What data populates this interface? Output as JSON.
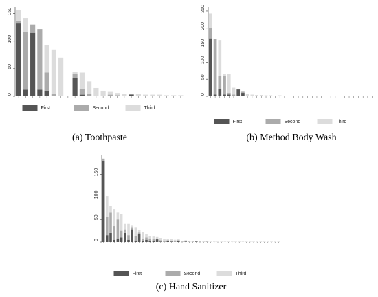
{
  "chart_data": [
    {
      "type": "stacked_bar",
      "title": "(a) Toothpaste",
      "categories": [
        null,
        null,
        null,
        null,
        null,
        null,
        null,
        null,
        null,
        null,
        null,
        null,
        null,
        null,
        null,
        null,
        null,
        null,
        null,
        null,
        null,
        null,
        null,
        null
      ],
      "series": [
        {
          "name": "First",
          "color": "#555555",
          "values": [
            132,
            12,
            115,
            12,
            10,
            0,
            0,
            0,
            33,
            3,
            0,
            0,
            0,
            0,
            0,
            0,
            3,
            0,
            0,
            0,
            1,
            0,
            1,
            0
          ]
        },
        {
          "name": "Second",
          "color": "#ababab",
          "values": [
            5,
            105,
            15,
            110,
            33,
            5,
            0,
            0,
            8,
            10,
            5,
            0,
            0,
            3,
            2,
            1,
            1,
            1,
            1,
            1,
            0,
            1,
            0,
            1
          ]
        },
        {
          "name": "Third",
          "color": "#dcdcdc",
          "values": [
            20,
            25,
            0,
            0,
            50,
            80,
            70,
            0,
            3,
            30,
            22,
            15,
            10,
            5,
            4,
            4,
            1,
            3,
            2,
            2,
            2,
            1,
            1,
            1
          ]
        }
      ],
      "ylim": [
        0,
        162
      ],
      "yticks": [
        0,
        50,
        100,
        150
      ]
    },
    {
      "type": "stacked_bar",
      "title": "(b) Method Body Wash",
      "categories": [
        null,
        null,
        null,
        null,
        null,
        null,
        null,
        null,
        null,
        null,
        null,
        null,
        null,
        null,
        null,
        null,
        null,
        null,
        null,
        null,
        null,
        null,
        null,
        null,
        null,
        null,
        null,
        null,
        null,
        null,
        null,
        null,
        null,
        null,
        null,
        null
      ],
      "series": [
        {
          "name": "First",
          "color": "#555555",
          "values": [
            170,
            5,
            22,
            5,
            5,
            0,
            20,
            10,
            0,
            0,
            0,
            0,
            0,
            0,
            0,
            2,
            0,
            0,
            0,
            0,
            0,
            0,
            0,
            0,
            0,
            0,
            0,
            0,
            0,
            0,
            0,
            0,
            0,
            0,
            0,
            0
          ]
        },
        {
          "name": "Second",
          "color": "#ababab",
          "values": [
            30,
            163,
            38,
            55,
            5,
            5,
            2,
            3,
            2,
            1,
            1,
            1,
            1,
            1,
            0,
            0,
            1,
            0,
            0,
            0,
            0,
            0,
            0,
            0,
            0,
            0,
            0,
            0,
            0,
            0,
            0,
            0,
            0,
            0,
            0,
            0
          ]
        },
        {
          "name": "Third",
          "color": "#dcdcdc",
          "values": [
            43,
            0,
            105,
            5,
            55,
            20,
            0,
            2,
            5,
            4,
            3,
            3,
            2,
            2,
            2,
            1,
            1,
            1,
            1,
            1,
            1,
            1,
            1,
            1,
            1,
            1,
            1,
            1,
            1,
            1,
            1,
            1,
            1,
            1,
            1,
            1
          ]
        }
      ],
      "ylim": [
        0,
        262
      ],
      "yticks": [
        0,
        50,
        100,
        150,
        200,
        250
      ]
    },
    {
      "type": "stacked_bar",
      "title": "(c) Hand Sanitizer",
      "categories": [
        null,
        null,
        null,
        null,
        null,
        null,
        null,
        null,
        null,
        null,
        null,
        null,
        null,
        null,
        null,
        null,
        null,
        null,
        null,
        null,
        null,
        null,
        null,
        null,
        null,
        null,
        null,
        null,
        null,
        null,
        null,
        null,
        null,
        null,
        null,
        null,
        null,
        null,
        null,
        null,
        null,
        null,
        null,
        null,
        null,
        null,
        null,
        null,
        null,
        null
      ],
      "series": [
        {
          "name": "First",
          "color": "#555555",
          "values": [
            180,
            15,
            20,
            5,
            8,
            10,
            20,
            5,
            28,
            3,
            18,
            2,
            5,
            3,
            2,
            6,
            1,
            0,
            2,
            1,
            0,
            3,
            0,
            1,
            0,
            0,
            1,
            0,
            0,
            0,
            0,
            0,
            0,
            0,
            0,
            0,
            0,
            0,
            0,
            0,
            0,
            0,
            0,
            0,
            0,
            0,
            0,
            0,
            0,
            0
          ]
        },
        {
          "name": "Second",
          "color": "#ababab",
          "values": [
            3,
            40,
            45,
            30,
            42,
            15,
            8,
            10,
            5,
            10,
            3,
            5,
            5,
            5,
            4,
            2,
            3,
            3,
            2,
            2,
            2,
            1,
            1,
            1,
            1,
            1,
            1,
            1,
            0,
            1,
            0,
            0,
            0,
            0,
            0,
            0,
            0,
            0,
            0,
            0,
            0,
            0,
            0,
            0,
            0,
            0,
            0,
            0,
            0,
            0
          ]
        },
        {
          "name": "Third",
          "color": "#dcdcdc",
          "values": [
            2,
            47,
            15,
            38,
            15,
            37,
            12,
            25,
            3,
            20,
            5,
            15,
            8,
            5,
            6,
            3,
            5,
            4,
            3,
            3,
            3,
            2,
            2,
            2,
            2,
            2,
            1,
            1,
            2,
            1,
            1,
            1,
            1,
            1,
            1,
            1,
            1,
            1,
            1,
            1,
            1,
            1,
            1,
            1,
            1,
            1,
            1,
            1,
            1,
            1
          ]
        }
      ],
      "ylim": [
        0,
        192
      ],
      "yticks": [
        0,
        50,
        100,
        150
      ]
    }
  ]
}
